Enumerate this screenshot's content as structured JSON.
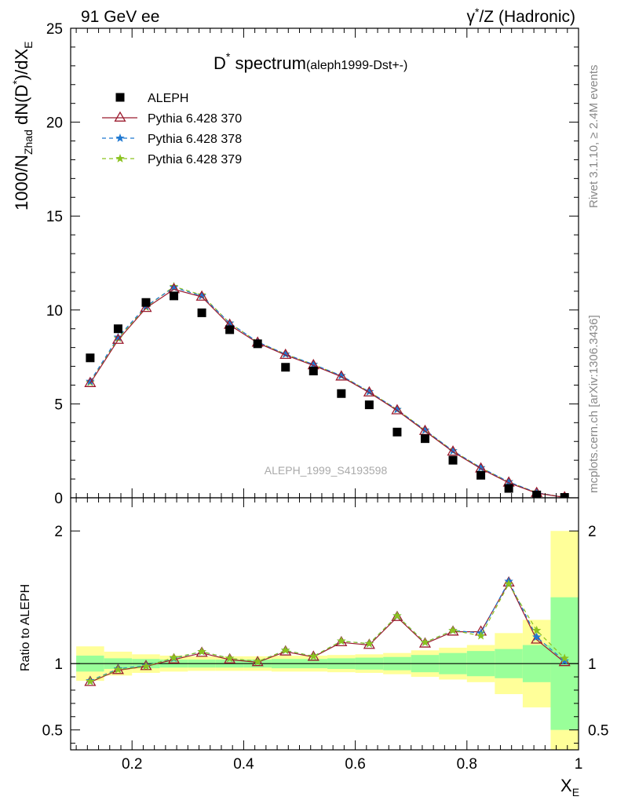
{
  "header": {
    "left": "91 GeV ee",
    "right_prefix": "γ",
    "right_sup": "*",
    "right_suffix": "/Z (Hadronic)"
  },
  "side_labels": {
    "rivet": "Rivet 3.1.10, ≥ 2.4M events",
    "mcplots": "mcplots.cern.ch [arXiv:1306.3436]"
  },
  "plot_title": {
    "main_a": "D",
    "main_sup": "*",
    "main_b": " spectrum",
    "sub": "(aleph1999-Dst+-)"
  },
  "watermark": "ALEPH_1999_S4193598",
  "ylabel_main": {
    "a": "1000/N",
    "a_sub": "Zhad",
    "b": " dN(D",
    "b_sup": "*",
    "c": ")/dX",
    "c_sub": "E"
  },
  "ylabel_ratio": "Ratio to ALEPH",
  "xlabel": {
    "a": "X",
    "a_sub": "E"
  },
  "colors": {
    "data": "#000000",
    "pythia370": "#9b1b2e",
    "pythia378": "#1f78d1",
    "pythia379": "#8bc21f",
    "band_outer": "#ffff99",
    "band_inner": "#99ff99"
  },
  "chart_data": {
    "type": "line",
    "x": [
      0.125,
      0.175,
      0.225,
      0.275,
      0.325,
      0.375,
      0.425,
      0.475,
      0.525,
      0.575,
      0.625,
      0.675,
      0.725,
      0.775,
      0.825,
      0.875,
      0.925,
      0.975
    ],
    "xlim": [
      0.09,
      1.0
    ],
    "xticks": [
      0.2,
      0.4,
      0.6,
      0.8,
      1.0
    ],
    "xtick_labels": [
      "0.2",
      "0.4",
      "0.6",
      "0.8",
      "1"
    ],
    "main": {
      "ylim": [
        0,
        25
      ],
      "yticks": [
        0,
        5,
        10,
        15,
        20,
        25
      ],
      "ytick_labels": [
        "0",
        "5",
        "10",
        "15",
        "20",
        "25"
      ],
      "series": [
        {
          "name": "ALEPH",
          "kind": "data",
          "values": [
            7.45,
            9.0,
            10.4,
            10.75,
            9.85,
            8.95,
            8.2,
            6.95,
            6.75,
            5.55,
            4.95,
            3.5,
            3.15,
            2.0,
            1.2,
            0.5,
            0.15,
            0.02
          ]
        },
        {
          "name": "Pythia 6.428 370",
          "kind": "triangle",
          "values": [
            6.1,
            8.4,
            10.1,
            11.1,
            10.7,
            9.2,
            8.25,
            7.6,
            7.05,
            6.45,
            5.6,
            4.65,
            3.55,
            2.45,
            1.55,
            0.8,
            0.25,
            0.02
          ]
        },
        {
          "name": "Pythia 6.428 378",
          "kind": "star",
          "values": [
            6.2,
            8.55,
            10.2,
            11.2,
            10.75,
            9.3,
            8.3,
            7.65,
            7.1,
            6.5,
            5.65,
            4.7,
            3.6,
            2.5,
            1.6,
            0.85,
            0.27,
            0.02
          ]
        },
        {
          "name": "Pythia 6.428 379",
          "kind": "star",
          "values": [
            6.15,
            8.5,
            10.15,
            11.25,
            10.8,
            9.3,
            8.3,
            7.65,
            7.1,
            6.5,
            5.65,
            4.7,
            3.6,
            2.5,
            1.6,
            0.85,
            0.27,
            0.02
          ]
        }
      ]
    },
    "ratio": {
      "ylim": [
        0.35,
        2.25
      ],
      "yticks": [
        0.5,
        1,
        2
      ],
      "ytick_labels": [
        "0.5",
        "1",
        "2"
      ],
      "series": [
        {
          "name": "Pythia 6.428 370",
          "values": [
            0.86,
            0.95,
            0.98,
            1.03,
            1.08,
            1.03,
            1.01,
            1.09,
            1.05,
            1.16,
            1.14,
            1.35,
            1.15,
            1.24,
            1.24,
            1.61,
            1.18,
            1.01
          ]
        },
        {
          "name": "Pythia 6.428 378",
          "values": [
            0.87,
            0.96,
            0.985,
            1.04,
            1.09,
            1.04,
            1.015,
            1.1,
            1.055,
            1.17,
            1.15,
            1.36,
            1.16,
            1.25,
            1.23,
            1.62,
            1.2,
            1.02
          ]
        },
        {
          "name": "Pythia 6.428 379",
          "values": [
            0.865,
            0.955,
            0.98,
            1.045,
            1.09,
            1.04,
            1.015,
            1.1,
            1.055,
            1.17,
            1.15,
            1.36,
            1.16,
            1.25,
            1.21,
            1.6,
            1.25,
            1.04
          ]
        }
      ],
      "band_inner": [
        [
          0.94,
          1.06
        ],
        [
          0.96,
          1.04
        ],
        [
          0.965,
          1.035
        ],
        [
          0.97,
          1.03
        ],
        [
          0.97,
          1.03
        ],
        [
          0.97,
          1.03
        ],
        [
          0.97,
          1.03
        ],
        [
          0.965,
          1.035
        ],
        [
          0.965,
          1.035
        ],
        [
          0.96,
          1.04
        ],
        [
          0.955,
          1.045
        ],
        [
          0.95,
          1.05
        ],
        [
          0.935,
          1.065
        ],
        [
          0.92,
          1.08
        ],
        [
          0.905,
          1.095
        ],
        [
          0.89,
          1.11
        ],
        [
          0.86,
          1.14
        ],
        [
          0.5,
          1.5
        ]
      ],
      "band_outer": [
        [
          0.87,
          1.13
        ],
        [
          0.91,
          1.09
        ],
        [
          0.93,
          1.07
        ],
        [
          0.94,
          1.06
        ],
        [
          0.945,
          1.055
        ],
        [
          0.945,
          1.055
        ],
        [
          0.945,
          1.055
        ],
        [
          0.94,
          1.06
        ],
        [
          0.94,
          1.06
        ],
        [
          0.935,
          1.065
        ],
        [
          0.93,
          1.07
        ],
        [
          0.92,
          1.08
        ],
        [
          0.9,
          1.1
        ],
        [
          0.88,
          1.12
        ],
        [
          0.86,
          1.14
        ],
        [
          0.77,
          1.23
        ],
        [
          0.67,
          1.33
        ],
        [
          0.25,
          2.0
        ]
      ]
    }
  }
}
